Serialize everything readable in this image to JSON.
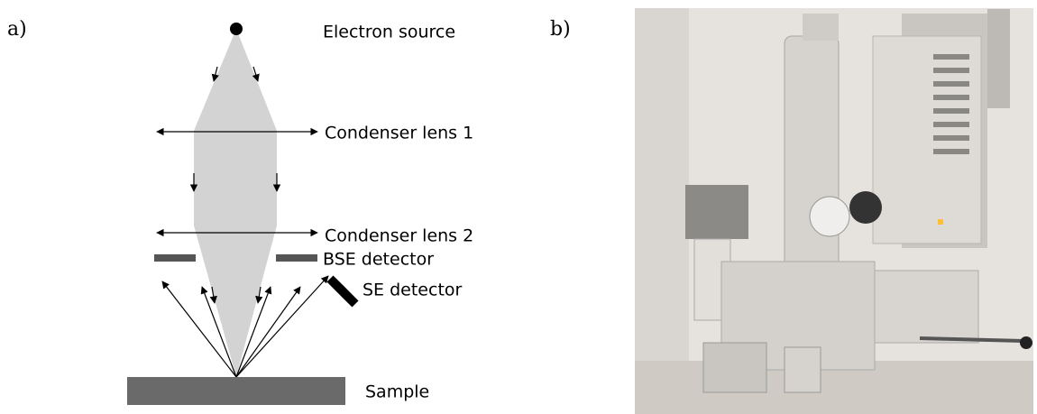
{
  "panels": [
    {
      "label": "a)",
      "electron_source": "Electron source",
      "condenser_lens_1": "Condenser lens 1",
      "condenser_lens_2": "Condenser lens 2",
      "bse_detector": "BSE detector",
      "se_detector": "SE detector",
      "sample": "Sample"
    },
    {
      "label": "b)"
    }
  ]
}
